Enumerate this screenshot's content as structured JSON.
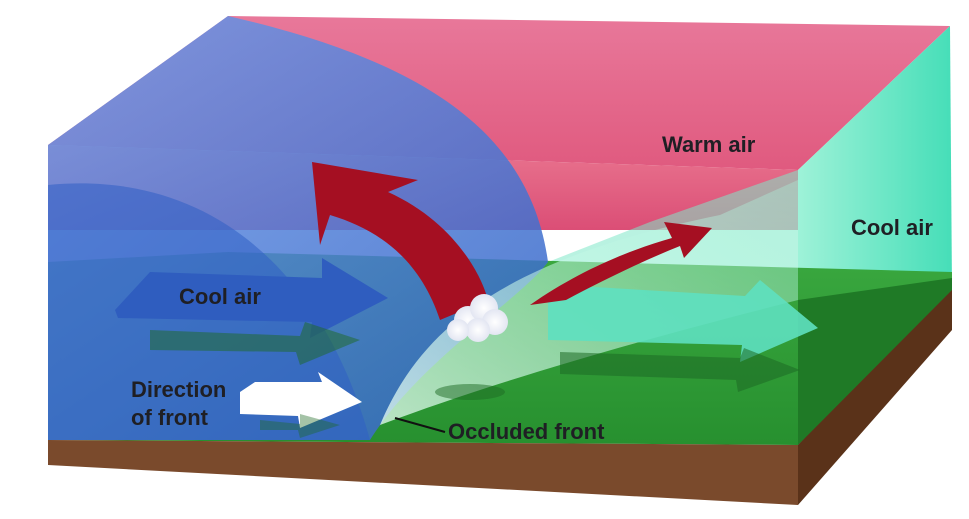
{
  "labels": {
    "warm_air": "Warm air",
    "cool_air_right": "Cool air",
    "cool_air_left": "Cool air",
    "direction_line1": "Direction",
    "direction_line2": "of front",
    "occluded_front": "Occluded front"
  },
  "colors": {
    "warm_air": "#e5688c",
    "cool_air_left": "#3e6fd0",
    "cool_air_right": "#4fe0bd",
    "ground": "#2e9a36",
    "soil": "#7a4a2c",
    "warm_arrow": "#a50f22",
    "direction_arrow": "#ffffff"
  }
}
